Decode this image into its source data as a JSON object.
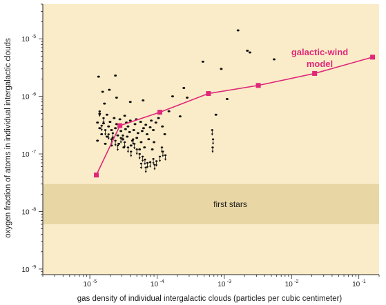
{
  "chart_data": {
    "type": "scatter",
    "xlabel": "gas density of individual intergalactic clouds (particles per cubic centimeter)",
    "ylabel": "oxygen fraction of atoms in individual intergalactic clouds",
    "x_scale": "log",
    "y_scale": "log",
    "xlim": [
      2e-06,
      0.2
    ],
    "ylim": [
      8e-10,
      4e-05
    ],
    "x_ticks": [
      {
        "value": 1e-05,
        "base": "10",
        "exp": "-5"
      },
      {
        "value": 0.0001,
        "base": "10",
        "exp": "-4"
      },
      {
        "value": 0.001,
        "base": "10",
        "exp": "-3"
      },
      {
        "value": 0.01,
        "base": "10",
        "exp": "-2"
      },
      {
        "value": 0.1,
        "base": "10",
        "exp": "-1"
      }
    ],
    "y_ticks": [
      {
        "value": 1e-09,
        "base": "10",
        "exp": "-9"
      },
      {
        "value": 1e-08,
        "base": "10",
        "exp": "-8"
      },
      {
        "value": 1e-07,
        "base": "10",
        "exp": "-7"
      },
      {
        "value": 1e-06,
        "base": "10",
        "exp": "-6"
      },
      {
        "value": 1e-05,
        "base": "10",
        "exp": "-5"
      }
    ],
    "grid": false,
    "legend": "none",
    "colors": {
      "background": "#faecc8",
      "band": "#e8d6a4",
      "model": "#e0287a",
      "points": "#111111"
    },
    "band": {
      "label": "first stars",
      "y_range": [
        6e-09,
        3e-08
      ]
    },
    "model_series": {
      "label_line1": "galactic-wind",
      "label_line2": "model",
      "x": [
        1.25e-05,
        2.8e-05,
        0.00011,
        0.00058,
        0.0032,
        0.022,
        0.16
      ],
      "y": [
        4.3e-08,
        3.1e-07,
        5.3e-07,
        1.12e-06,
        1.55e-06,
        2.5e-06,
        4.8e-06
      ]
    },
    "measurements": [
      [
        1.55e-05,
        1.2e-06
      ],
      [
        1.95e-05,
        1.3e-06
      ],
      [
        2.4e-05,
        2.3e-06
      ],
      [
        1.35e-05,
        2.2e-06
      ],
      [
        1.65e-05,
        7.5e-07
      ],
      [
        2.5e-05,
        9.5e-07
      ],
      [
        4e-05,
        8e-07
      ],
      [
        6.2e-05,
        8.5e-07
      ],
      [
        0.00015,
        5.5e-07
      ],
      [
        0.00017,
        1e-06
      ],
      [
        0.00025,
        1.4e-06
      ],
      [
        0.00028,
        9.5e-07
      ],
      [
        0.00048,
        4e-06
      ],
      [
        0.0009,
        3e-06
      ],
      [
        0.0011,
        9e-07
      ],
      [
        0.0016,
        1.4e-05
      ],
      [
        0.0022,
        6.2e-06
      ],
      [
        0.0024,
        5.8e-06
      ],
      [
        0.0055,
        4.4e-06
      ],
      [
        0.00075,
        4.8e-07
      ],
      [
        0.00022,
        4.5e-07
      ],
      [
        1.4e-05,
        5e-07
      ],
      [
        1.8e-05,
        4.8e-07
      ],
      [
        2.3e-05,
        4.2e-07
      ],
      [
        2.8e-05,
        4e-07
      ],
      [
        3.3e-05,
        4.6e-07
      ],
      [
        4e-05,
        3.8e-07
      ],
      [
        4.9e-05,
        4e-07
      ],
      [
        5.7e-05,
        3.6e-07
      ],
      [
        6.8e-05,
        3.2e-07
      ],
      [
        8.2e-05,
        3.8e-07
      ],
      [
        9.6e-05,
        3.5e-07
      ],
      [
        1.3e-05,
        3.5e-07
      ],
      [
        1.6e-05,
        3.4e-07
      ],
      [
        1.9e-05,
        3e-07
      ],
      [
        2.1e-05,
        2.6e-07
      ],
      [
        2.4e-05,
        2.8e-07
      ],
      [
        2.9e-05,
        2.5e-07
      ],
      [
        3.4e-05,
        2.7e-07
      ],
      [
        3.9e-05,
        2.4e-07
      ],
      [
        4.5e-05,
        2.6e-07
      ],
      [
        5.2e-05,
        2.3e-07
      ],
      [
        6e-05,
        2.5e-07
      ],
      [
        7.1e-05,
        2.2e-07
      ],
      [
        8.8e-05,
        2.6e-07
      ],
      [
        1.5e-05,
        2.2e-07
      ],
      [
        1.8e-05,
        2e-07
      ],
      [
        2.2e-05,
        1.9e-07
      ],
      [
        2.6e-05,
        2.1e-07
      ],
      [
        3.1e-05,
        1.8e-07
      ],
      [
        3.6e-05,
        2e-07
      ],
      [
        4.3e-05,
        1.7e-07
      ],
      [
        5e-05,
        1.9e-07
      ],
      [
        5.8e-05,
        1.6e-07
      ],
      [
        7.5e-05,
        1.8e-07
      ],
      [
        9e-05,
        1.6e-07
      ],
      [
        1.3e-05,
        1.7e-07
      ],
      [
        1.7e-05,
        1.5e-07
      ],
      [
        2.1e-05,
        1.4e-07
      ],
      [
        2.7e-05,
        1.5e-07
      ],
      [
        3.2e-05,
        1.3e-07
      ],
      [
        4.1e-05,
        1.4e-07
      ],
      [
        5.5e-05,
        1.2e-07
      ],
      [
        6.5e-05,
        1.3e-07
      ],
      [
        8.5e-05,
        1.2e-07
      ],
      [
        0.00012,
        3e-07
      ],
      [
        0.00013,
        2.2e-07
      ],
      [
        0.000105,
        4.2e-07
      ],
      [
        1.4e-05,
        2.8e-07
      ],
      [
        2e-05,
        3.6e-07
      ],
      [
        3.7e-05,
        3e-07
      ],
      [
        4.7e-05,
        3.3e-07
      ],
      [
        6.3e-05,
        2.8e-07
      ],
      [
        7.9e-05,
        2.9e-07
      ],
      [
        2.5e-05,
        3.3e-07
      ],
      [
        3.5e-05,
        3.5e-07
      ]
    ],
    "upper_limits": [
      [
        1.4e-05,
        5.5e-07
      ],
      [
        1.6e-05,
        4.2e-07
      ],
      [
        1.5e-05,
        3.1e-07
      ],
      [
        1.7e-05,
        2.6e-07
      ],
      [
        1.9e-05,
        2.2e-07
      ],
      [
        2.1e-05,
        1.8e-07
      ],
      [
        2.4e-05,
        1.7e-07
      ],
      [
        2.6e-05,
        1.4e-07
      ],
      [
        2.9e-05,
        1.9e-07
      ],
      [
        3.3e-05,
        1.6e-07
      ],
      [
        3.7e-05,
        1.3e-07
      ],
      [
        4.1e-05,
        1.1e-07
      ],
      [
        4.6e-05,
        1.5e-07
      ],
      [
        5e-05,
        1.2e-07
      ],
      [
        5.5e-05,
        1e-07
      ],
      [
        6.1e-05,
        9e-08
      ],
      [
        6.6e-05,
        8e-08
      ],
      [
        7.2e-05,
        7e-08
      ],
      [
        5.8e-05,
        6.8e-08
      ],
      [
        6.8e-05,
        5.8e-08
      ],
      [
        7.9e-05,
        7.2e-08
      ],
      [
        9.2e-05,
        6.5e-08
      ],
      [
        0.00011,
        9e-08
      ],
      [
        0.000122,
        1.1e-07
      ],
      [
        0.000133,
        9.5e-08
      ],
      [
        0.000118,
        1.3e-07
      ],
      [
        0.00066,
        2.6e-07
      ],
      [
        0.00068,
        1.8e-07
      ],
      [
        0.00067,
        1.3e-07
      ],
      [
        2.2e-05,
        2.3e-07
      ],
      [
        3.1e-05,
        2.1e-07
      ],
      [
        4.4e-05,
        1.8e-07
      ],
      [
        8.8e-05,
        8.2e-08
      ],
      [
        9.8e-05,
        7.5e-08
      ]
    ]
  }
}
